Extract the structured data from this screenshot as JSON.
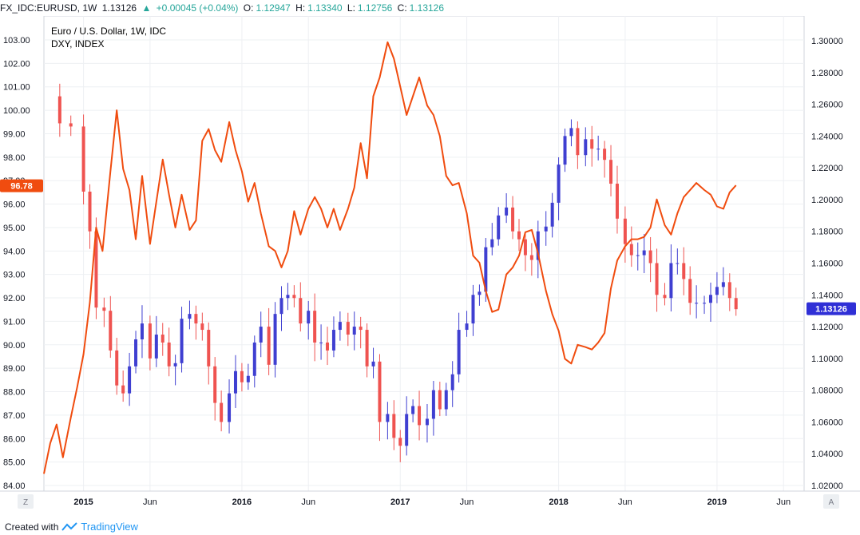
{
  "header": {
    "symbol": "FX_IDC:EURUSD, 1W",
    "last": "1.13126",
    "change": "+0.00045 (+0.04%)",
    "open_label": "O:",
    "open": "1.12947",
    "high_label": "H:",
    "high": "1.13340",
    "low_label": "L:",
    "low": "1.12756",
    "close_label": "C:",
    "close": "1.13126"
  },
  "footer": {
    "created_with": "Created with",
    "brand": "TradingView"
  },
  "colors": {
    "candle_up": "#3f3fd1",
    "candle_down": "#ef5350",
    "dxy_line": "#f04c0f",
    "grid": "#eef0f3"
  },
  "chart_data": {
    "type": "line",
    "title": "Euro / U.S. Dollar, 1W, IDC",
    "subtitle": "DXY, INDEX",
    "x_ticks": [
      "2015",
      "Jun",
      "2016",
      "Jun",
      "2017",
      "Jun",
      "2018",
      "Jun",
      "2019",
      "Jun"
    ],
    "left_axis": {
      "ticks": [
        "103.00",
        "102.00",
        "101.00",
        "100.00",
        "99.00",
        "98.00",
        "97.00",
        "96.00",
        "95.00",
        "94.00",
        "93.00",
        "92.00",
        "91.00",
        "90.00",
        "89.00",
        "88.00",
        "87.00",
        "86.00",
        "85.00",
        "84.00"
      ],
      "range": [
        84,
        103
      ],
      "current_label": "96.78"
    },
    "right_axis": {
      "ticks": [
        "1.30000",
        "1.28000",
        "1.26000",
        "1.24000",
        "1.22000",
        "1.20000",
        "1.18000",
        "1.16000",
        "1.14000",
        "1.12000",
        "1.10000",
        "1.08000",
        "1.06000",
        "1.04000",
        "1.02000"
      ],
      "range": [
        1.02,
        1.3
      ],
      "current_label": "1.13126"
    },
    "corner_labels": {
      "left": "Z",
      "right": "A"
    },
    "x_range": [
      2014.75,
      2019.55
    ],
    "series": [
      {
        "symbol": "EURUSD",
        "kind": "weekly-candles",
        "axis": "right",
        "close_points": [
          [
            2014.77,
            1.265
          ],
          [
            2014.85,
            1.248
          ],
          [
            2014.92,
            1.246
          ],
          [
            2015.0,
            1.205
          ],
          [
            2015.04,
            1.18
          ],
          [
            2015.08,
            1.132
          ],
          [
            2015.13,
            1.13
          ],
          [
            2015.17,
            1.105
          ],
          [
            2015.21,
            1.083
          ],
          [
            2015.25,
            1.078
          ],
          [
            2015.29,
            1.095
          ],
          [
            2015.33,
            1.112
          ],
          [
            2015.37,
            1.122
          ],
          [
            2015.42,
            1.1
          ],
          [
            2015.46,
            1.115
          ],
          [
            2015.5,
            1.11
          ],
          [
            2015.54,
            1.095
          ],
          [
            2015.58,
            1.097
          ],
          [
            2015.62,
            1.125
          ],
          [
            2015.67,
            1.128
          ],
          [
            2015.71,
            1.122
          ],
          [
            2015.75,
            1.118
          ],
          [
            2015.79,
            1.095
          ],
          [
            2015.83,
            1.072
          ],
          [
            2015.87,
            1.06
          ],
          [
            2015.92,
            1.078
          ],
          [
            2015.96,
            1.092
          ],
          [
            2016.0,
            1.085
          ],
          [
            2016.04,
            1.089
          ],
          [
            2016.08,
            1.11
          ],
          [
            2016.12,
            1.12
          ],
          [
            2016.17,
            1.096
          ],
          [
            2016.21,
            1.128
          ],
          [
            2016.25,
            1.138
          ],
          [
            2016.29,
            1.14
          ],
          [
            2016.33,
            1.138
          ],
          [
            2016.37,
            1.122
          ],
          [
            2016.42,
            1.13
          ],
          [
            2016.46,
            1.11
          ],
          [
            2016.5,
            1.11
          ],
          [
            2016.54,
            1.105
          ],
          [
            2016.58,
            1.118
          ],
          [
            2016.62,
            1.123
          ],
          [
            2016.67,
            1.115
          ],
          [
            2016.71,
            1.12
          ],
          [
            2016.75,
            1.118
          ],
          [
            2016.79,
            1.095
          ],
          [
            2016.83,
            1.098
          ],
          [
            2016.87,
            1.06
          ],
          [
            2016.92,
            1.065
          ],
          [
            2016.96,
            1.05
          ],
          [
            2017.0,
            1.045
          ],
          [
            2017.04,
            1.065
          ],
          [
            2017.08,
            1.07
          ],
          [
            2017.12,
            1.058
          ],
          [
            2017.17,
            1.062
          ],
          [
            2017.21,
            1.08
          ],
          [
            2017.25,
            1.068
          ],
          [
            2017.29,
            1.08
          ],
          [
            2017.33,
            1.09
          ],
          [
            2017.37,
            1.118
          ],
          [
            2017.42,
            1.122
          ],
          [
            2017.46,
            1.14
          ],
          [
            2017.5,
            1.142
          ],
          [
            2017.54,
            1.17
          ],
          [
            2017.58,
            1.175
          ],
          [
            2017.62,
            1.19
          ],
          [
            2017.67,
            1.195
          ],
          [
            2017.71,
            1.18
          ],
          [
            2017.75,
            1.175
          ],
          [
            2017.79,
            1.165
          ],
          [
            2017.83,
            1.162
          ],
          [
            2017.87,
            1.18
          ],
          [
            2017.92,
            1.183
          ],
          [
            2017.96,
            1.198
          ],
          [
            2018.0,
            1.222
          ],
          [
            2018.04,
            1.24
          ],
          [
            2018.08,
            1.245
          ],
          [
            2018.12,
            1.228
          ],
          [
            2018.17,
            1.238
          ],
          [
            2018.21,
            1.232
          ],
          [
            2018.25,
            1.232
          ],
          [
            2018.29,
            1.225
          ],
          [
            2018.33,
            1.21
          ],
          [
            2018.37,
            1.188
          ],
          [
            2018.42,
            1.172
          ],
          [
            2018.46,
            1.165
          ],
          [
            2018.5,
            1.165
          ],
          [
            2018.54,
            1.168
          ],
          [
            2018.58,
            1.16
          ],
          [
            2018.62,
            1.14
          ],
          [
            2018.67,
            1.138
          ],
          [
            2018.71,
            1.16
          ],
          [
            2018.75,
            1.16
          ],
          [
            2018.79,
            1.15
          ],
          [
            2018.83,
            1.135
          ],
          [
            2018.87,
            1.135
          ],
          [
            2018.92,
            1.135
          ],
          [
            2018.96,
            1.14
          ],
          [
            2019.0,
            1.145
          ],
          [
            2019.04,
            1.148
          ],
          [
            2019.08,
            1.138
          ],
          [
            2019.12,
            1.131
          ]
        ]
      },
      {
        "symbol": "DXY",
        "kind": "line",
        "axis": "left",
        "points": [
          [
            2014.75,
            84.5
          ],
          [
            2014.79,
            85.8
          ],
          [
            2014.83,
            86.6
          ],
          [
            2014.87,
            85.2
          ],
          [
            2014.92,
            86.9
          ],
          [
            2014.96,
            88.2
          ],
          [
            2015.0,
            89.6
          ],
          [
            2015.04,
            91.8
          ],
          [
            2015.08,
            95.0
          ],
          [
            2015.12,
            94.0
          ],
          [
            2015.17,
            97.4
          ],
          [
            2015.21,
            100.0
          ],
          [
            2015.25,
            97.5
          ],
          [
            2015.29,
            96.6
          ],
          [
            2015.33,
            94.5
          ],
          [
            2015.37,
            97.2
          ],
          [
            2015.42,
            94.3
          ],
          [
            2015.46,
            96.1
          ],
          [
            2015.5,
            97.9
          ],
          [
            2015.54,
            96.4
          ],
          [
            2015.58,
            95.0
          ],
          [
            2015.62,
            96.4
          ],
          [
            2015.67,
            94.9
          ],
          [
            2015.71,
            95.3
          ],
          [
            2015.75,
            98.7
          ],
          [
            2015.79,
            99.2
          ],
          [
            2015.83,
            98.3
          ],
          [
            2015.87,
            97.8
          ],
          [
            2015.92,
            99.5
          ],
          [
            2015.96,
            98.3
          ],
          [
            2016.0,
            97.4
          ],
          [
            2016.04,
            96.1
          ],
          [
            2016.08,
            96.9
          ],
          [
            2016.12,
            95.6
          ],
          [
            2016.17,
            94.2
          ],
          [
            2016.21,
            94.0
          ],
          [
            2016.25,
            93.3
          ],
          [
            2016.29,
            94.0
          ],
          [
            2016.33,
            95.7
          ],
          [
            2016.37,
            94.7
          ],
          [
            2016.42,
            95.8
          ],
          [
            2016.46,
            96.3
          ],
          [
            2016.5,
            95.8
          ],
          [
            2016.54,
            95.0
          ],
          [
            2016.58,
            95.8
          ],
          [
            2016.62,
            94.9
          ],
          [
            2016.67,
            95.8
          ],
          [
            2016.71,
            96.7
          ],
          [
            2016.75,
            98.6
          ],
          [
            2016.79,
            97.1
          ],
          [
            2016.83,
            100.6
          ],
          [
            2016.87,
            101.4
          ],
          [
            2016.92,
            102.9
          ],
          [
            2016.96,
            102.2
          ],
          [
            2017.0,
            101.0
          ],
          [
            2017.04,
            99.8
          ],
          [
            2017.08,
            100.6
          ],
          [
            2017.12,
            101.4
          ],
          [
            2017.17,
            100.2
          ],
          [
            2017.21,
            99.8
          ],
          [
            2017.25,
            98.9
          ],
          [
            2017.29,
            97.2
          ],
          [
            2017.33,
            96.8
          ],
          [
            2017.37,
            96.9
          ],
          [
            2017.42,
            95.6
          ],
          [
            2017.46,
            93.8
          ],
          [
            2017.5,
            93.5
          ],
          [
            2017.54,
            92.3
          ],
          [
            2017.58,
            91.4
          ],
          [
            2017.62,
            91.5
          ],
          [
            2017.67,
            93.0
          ],
          [
            2017.71,
            93.3
          ],
          [
            2017.75,
            93.8
          ],
          [
            2017.79,
            94.8
          ],
          [
            2017.83,
            94.9
          ],
          [
            2017.87,
            93.9
          ],
          [
            2017.92,
            92.3
          ],
          [
            2017.96,
            91.3
          ],
          [
            2018.0,
            90.6
          ],
          [
            2018.04,
            89.4
          ],
          [
            2018.08,
            89.2
          ],
          [
            2018.12,
            90.0
          ],
          [
            2018.17,
            89.9
          ],
          [
            2018.21,
            89.8
          ],
          [
            2018.25,
            90.1
          ],
          [
            2018.29,
            90.5
          ],
          [
            2018.33,
            92.4
          ],
          [
            2018.37,
            93.6
          ],
          [
            2018.42,
            94.2
          ],
          [
            2018.46,
            94.5
          ],
          [
            2018.5,
            94.5
          ],
          [
            2018.54,
            94.6
          ],
          [
            2018.58,
            95.0
          ],
          [
            2018.62,
            96.2
          ],
          [
            2018.67,
            95.1
          ],
          [
            2018.71,
            94.7
          ],
          [
            2018.75,
            95.6
          ],
          [
            2018.79,
            96.3
          ],
          [
            2018.83,
            96.6
          ],
          [
            2018.87,
            96.9
          ],
          [
            2018.92,
            96.6
          ],
          [
            2018.96,
            96.4
          ],
          [
            2019.0,
            95.9
          ],
          [
            2019.04,
            95.8
          ],
          [
            2019.08,
            96.5
          ],
          [
            2019.12,
            96.8
          ]
        ]
      }
    ]
  }
}
